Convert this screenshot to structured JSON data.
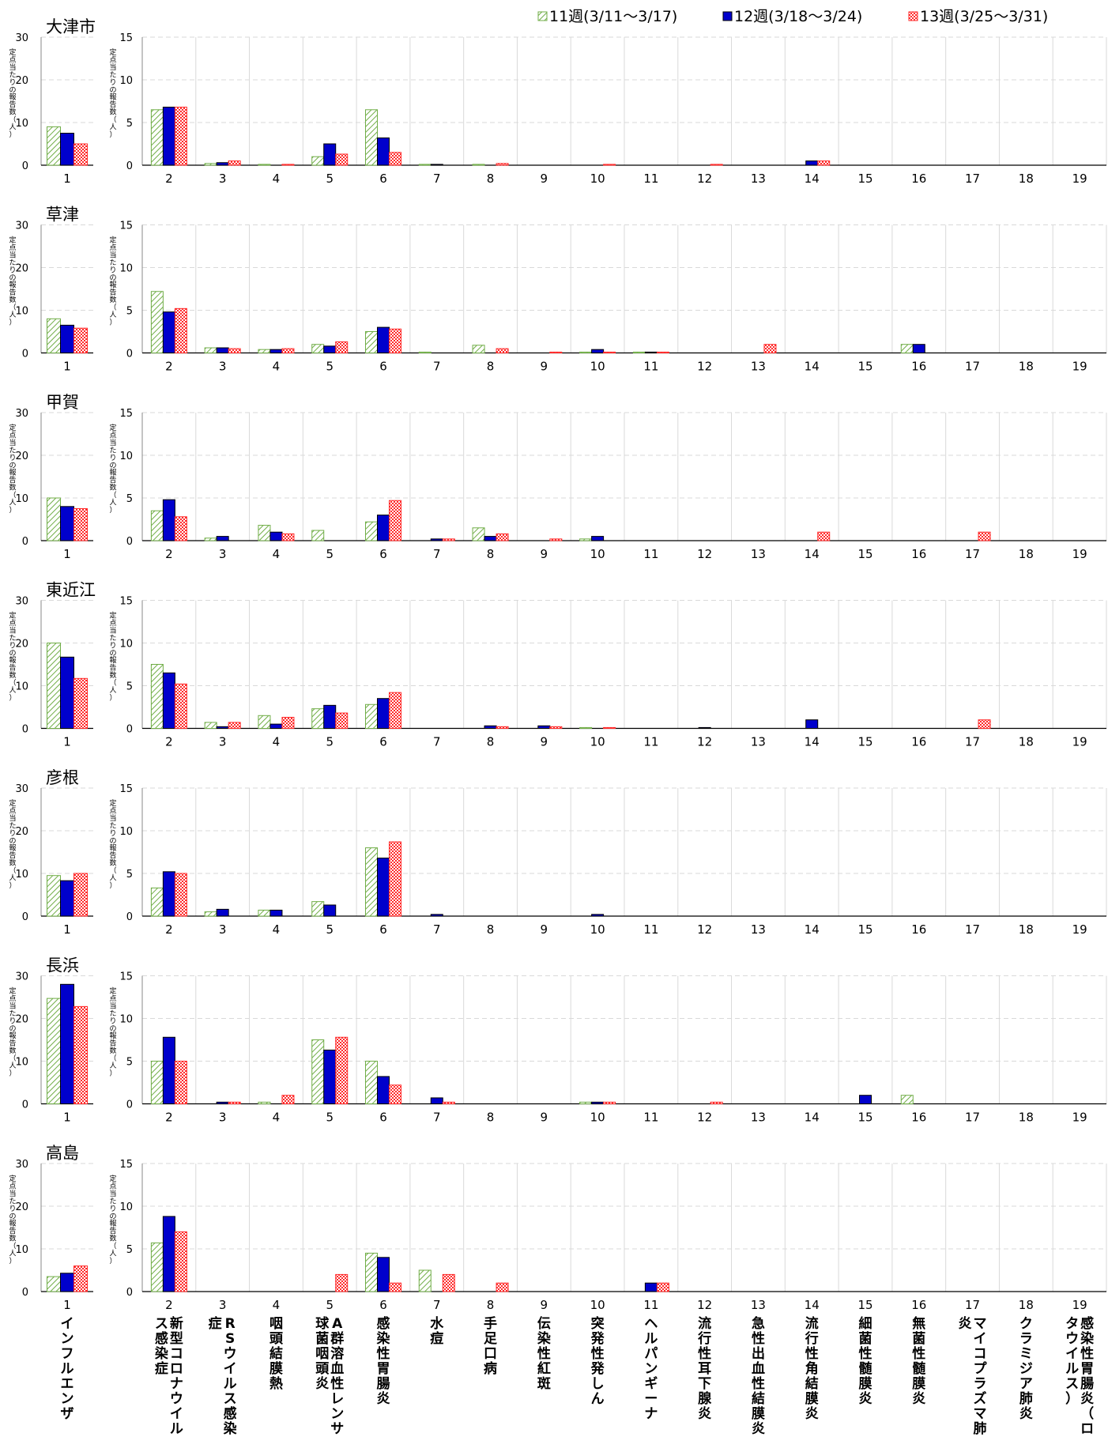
{
  "legend": {
    "items": [
      {
        "label": "11週(3/11～3/17)",
        "key": "w11"
      },
      {
        "label": "12週(3/18～3/24)",
        "key": "w12"
      },
      {
        "label": "13週(3/25～3/31)",
        "key": "w13"
      }
    ]
  },
  "colors": {
    "w11": "#70ad47",
    "w12": "#0000cc",
    "w13": "#ff2a2a",
    "grid": "#d9d9d9",
    "axis": "#000000"
  },
  "y_axis_label": "定点当たりの報告数（人）",
  "category_labels": [
    "インフルエンザ",
    "新型コロナウイルス感染症",
    "RSウイルス感染症",
    "咽頭結膜熱",
    "A群溶血性レンサ球菌咽頭炎",
    "感染性胃腸炎",
    "水痘",
    "手足口病",
    "伝染性紅斑",
    "突発性発しん",
    "ヘルパンギーナ",
    "流行性耳下腺炎",
    "急性出血性結膜炎",
    "流行性角結膜炎",
    "細菌性髄膜炎",
    "無菌性髄膜炎",
    "マイコプラズマ肺炎",
    "クラミジア肺炎",
    "感染性胃腸炎（ロタウイルス）"
  ],
  "chart_data": {
    "type": "bar",
    "left_ylim": [
      0,
      30
    ],
    "left_yticks": [
      0,
      10,
      20,
      30
    ],
    "right_ylim": [
      0,
      15
    ],
    "right_yticks": [
      0,
      5,
      10,
      15
    ],
    "categories": [
      "1",
      "2",
      "3",
      "4",
      "5",
      "6",
      "7",
      "8",
      "9",
      "10",
      "11",
      "12",
      "13",
      "14",
      "15",
      "16",
      "17",
      "18",
      "19"
    ],
    "series_names": [
      "11週(3/11～3/17)",
      "12週(3/18～3/24)",
      "13週(3/25～3/31)"
    ],
    "grid": true,
    "legend_position": "top-right",
    "regions": [
      {
        "name": "大津市",
        "series": [
          [
            9.0,
            6.5,
            0.2,
            0.1,
            1.0,
            6.5,
            0.1,
            0.1,
            0,
            0,
            0,
            0,
            0,
            0,
            0,
            0,
            0,
            0,
            0
          ],
          [
            7.5,
            6.8,
            0.3,
            0,
            2.5,
            3.2,
            0.1,
            0,
            0,
            0,
            0,
            0,
            0,
            0.5,
            0,
            0,
            0,
            0,
            0
          ],
          [
            5.0,
            6.8,
            0.5,
            0.1,
            1.3,
            1.5,
            0,
            0.2,
            0,
            0.1,
            0,
            0.1,
            0,
            0.5,
            0,
            0,
            0,
            0,
            0
          ]
        ]
      },
      {
        "name": "草津",
        "series": [
          [
            8.0,
            7.2,
            0.6,
            0.4,
            1.0,
            2.5,
            0.1,
            0.9,
            0,
            0.1,
            0.1,
            0,
            0,
            0,
            0,
            1.0,
            0,
            0,
            0
          ],
          [
            6.5,
            4.8,
            0.6,
            0.4,
            0.8,
            3.0,
            0,
            0,
            0,
            0.4,
            0.1,
            0,
            0,
            0,
            0,
            1.0,
            0,
            0,
            0
          ],
          [
            5.8,
            5.2,
            0.5,
            0.5,
            1.3,
            2.8,
            0,
            0.5,
            0.1,
            0.1,
            0.1,
            0,
            1.0,
            0,
            0,
            0,
            0,
            0,
            0
          ]
        ]
      },
      {
        "name": "甲賀",
        "series": [
          [
            10.0,
            3.5,
            0.3,
            1.8,
            1.2,
            2.2,
            0,
            1.5,
            0,
            0.2,
            0,
            0,
            0,
            0,
            0,
            0,
            0,
            0,
            0
          ],
          [
            8.0,
            4.8,
            0.5,
            1.0,
            0,
            3.0,
            0.2,
            0.5,
            0,
            0.5,
            0,
            0,
            0,
            0,
            0,
            0,
            0,
            0,
            0
          ],
          [
            7.5,
            2.8,
            0,
            0.8,
            0,
            4.7,
            0.2,
            0.8,
            0.2,
            0,
            0,
            0,
            0,
            1.0,
            0,
            0,
            1.0,
            0,
            0
          ]
        ]
      },
      {
        "name": "東近江",
        "series": [
          [
            20.0,
            7.5,
            0.7,
            1.5,
            2.3,
            2.8,
            0,
            0,
            0,
            0.1,
            0,
            0,
            0,
            0,
            0,
            0,
            0,
            0,
            0
          ],
          [
            16.7,
            6.5,
            0.2,
            0.5,
            2.7,
            3.5,
            0,
            0.3,
            0.3,
            0,
            0,
            0.1,
            0,
            1.0,
            0,
            0,
            0,
            0,
            0
          ],
          [
            11.7,
            5.2,
            0.7,
            1.3,
            1.8,
            4.2,
            0,
            0.2,
            0.2,
            0.1,
            0,
            0,
            0,
            0,
            0,
            0,
            1.0,
            0,
            0
          ]
        ]
      },
      {
        "name": "彦根",
        "series": [
          [
            9.5,
            3.3,
            0.5,
            0.7,
            1.7,
            8.0,
            0,
            0,
            0,
            0,
            0,
            0,
            0,
            0,
            0,
            0,
            0,
            0,
            0
          ],
          [
            8.3,
            5.2,
            0.8,
            0.7,
            1.3,
            6.8,
            0.2,
            0,
            0,
            0.2,
            0,
            0,
            0,
            0,
            0,
            0,
            0,
            0,
            0
          ],
          [
            10.0,
            5.0,
            0,
            0,
            0,
            8.7,
            0,
            0,
            0,
            0,
            0,
            0,
            0,
            0,
            0,
            0,
            0,
            0,
            0
          ]
        ]
      },
      {
        "name": "長浜",
        "series": [
          [
            24.7,
            5.0,
            0,
            0.2,
            7.5,
            5.0,
            0,
            0,
            0,
            0.2,
            0,
            0,
            0,
            0,
            0,
            1.0,
            0,
            0,
            0
          ],
          [
            28.0,
            7.8,
            0.2,
            0,
            6.3,
            3.2,
            0.7,
            0,
            0,
            0.2,
            0,
            0,
            0,
            0,
            1.0,
            0,
            0,
            0,
            0
          ],
          [
            22.8,
            5.0,
            0.2,
            1.0,
            7.8,
            2.2,
            0.2,
            0,
            0,
            0.2,
            0,
            0.2,
            0,
            0,
            0,
            0,
            0,
            0,
            0
          ]
        ]
      },
      {
        "name": "高島",
        "series": [
          [
            3.5,
            5.7,
            0,
            0,
            0,
            4.5,
            2.5,
            0,
            0,
            0,
            0,
            0,
            0,
            0,
            0,
            0,
            0,
            0,
            0
          ],
          [
            4.3,
            8.8,
            0,
            0,
            0,
            4.0,
            0,
            0,
            0,
            0,
            1.0,
            0,
            0,
            0,
            0,
            0,
            0,
            0,
            0
          ],
          [
            6.0,
            7.0,
            0,
            0,
            2.0,
            1.0,
            2.0,
            1.0,
            0,
            0,
            1.0,
            0,
            0,
            0,
            0,
            0,
            0,
            0,
            0
          ]
        ]
      }
    ]
  }
}
